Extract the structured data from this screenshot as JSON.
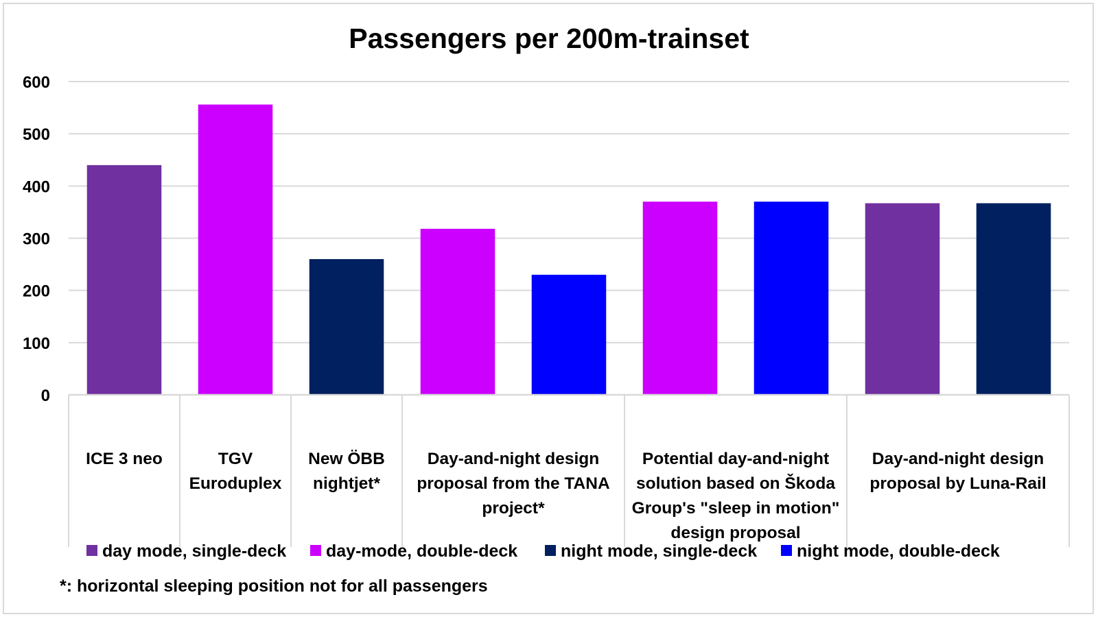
{
  "chart_data": {
    "type": "bar",
    "title": "Passengers per 200m-trainset",
    "xlabel": "",
    "ylabel": "",
    "ylim": [
      0,
      600
    ],
    "yticks": [
      0,
      100,
      200,
      300,
      400,
      500,
      600
    ],
    "grid": true,
    "groups": [
      {
        "label": "ICE 3 neo",
        "bars": 1
      },
      {
        "label": "TGV Euroduplex",
        "bars": 1
      },
      {
        "label": "New ÖBB nightjet*",
        "bars": 1
      },
      {
        "label": "Day-and-night design proposal from the TANA project*",
        "bars": 2
      },
      {
        "label": "Potential day-and-night solution based on Škoda Group's \"sleep in motion\" design proposal",
        "bars": 2
      },
      {
        "label": "Day-and-night design proposal by Luna-Rail",
        "bars": 2
      }
    ],
    "bars": [
      {
        "group": 0,
        "series": 0,
        "value": 440
      },
      {
        "group": 1,
        "series": 1,
        "value": 556
      },
      {
        "group": 2,
        "series": 2,
        "value": 260
      },
      {
        "group": 3,
        "series": 1,
        "value": 318
      },
      {
        "group": 3,
        "series": 3,
        "value": 230
      },
      {
        "group": 4,
        "series": 1,
        "value": 370
      },
      {
        "group": 4,
        "series": 3,
        "value": 370
      },
      {
        "group": 5,
        "series": 0,
        "value": 367
      },
      {
        "group": 5,
        "series": 2,
        "value": 367
      }
    ],
    "series": [
      {
        "name": "day mode, single-deck",
        "color": "#7030a0"
      },
      {
        "name": "day-mode, double-deck",
        "color": "#cc00ff"
      },
      {
        "name": "night mode, single-deck",
        "color": "#002060"
      },
      {
        "name": "night mode, double-deck",
        "color": "#0000ff"
      }
    ],
    "legend_position": "bottom",
    "footnote": "*: horizontal sleeping position not for all passengers"
  },
  "category_lines": {
    "g0": [
      "ICE 3 neo"
    ],
    "g1": [
      "TGV",
      "Euroduplex"
    ],
    "g2": [
      "New ÖBB",
      "nightjet*"
    ],
    "g3": [
      "Day-and-night design",
      "proposal from the TANA",
      "project*"
    ],
    "g4": [
      "Potential day-and-night",
      "solution based on Škoda",
      "Group's \"sleep in motion\"",
      "design proposal"
    ],
    "g5": [
      "Day-and-night design",
      "proposal by Luna-Rail"
    ]
  },
  "colors": {
    "grid": "#d9d9d9",
    "axis": "#d9d9d9",
    "frame": "#d9d9d9"
  }
}
